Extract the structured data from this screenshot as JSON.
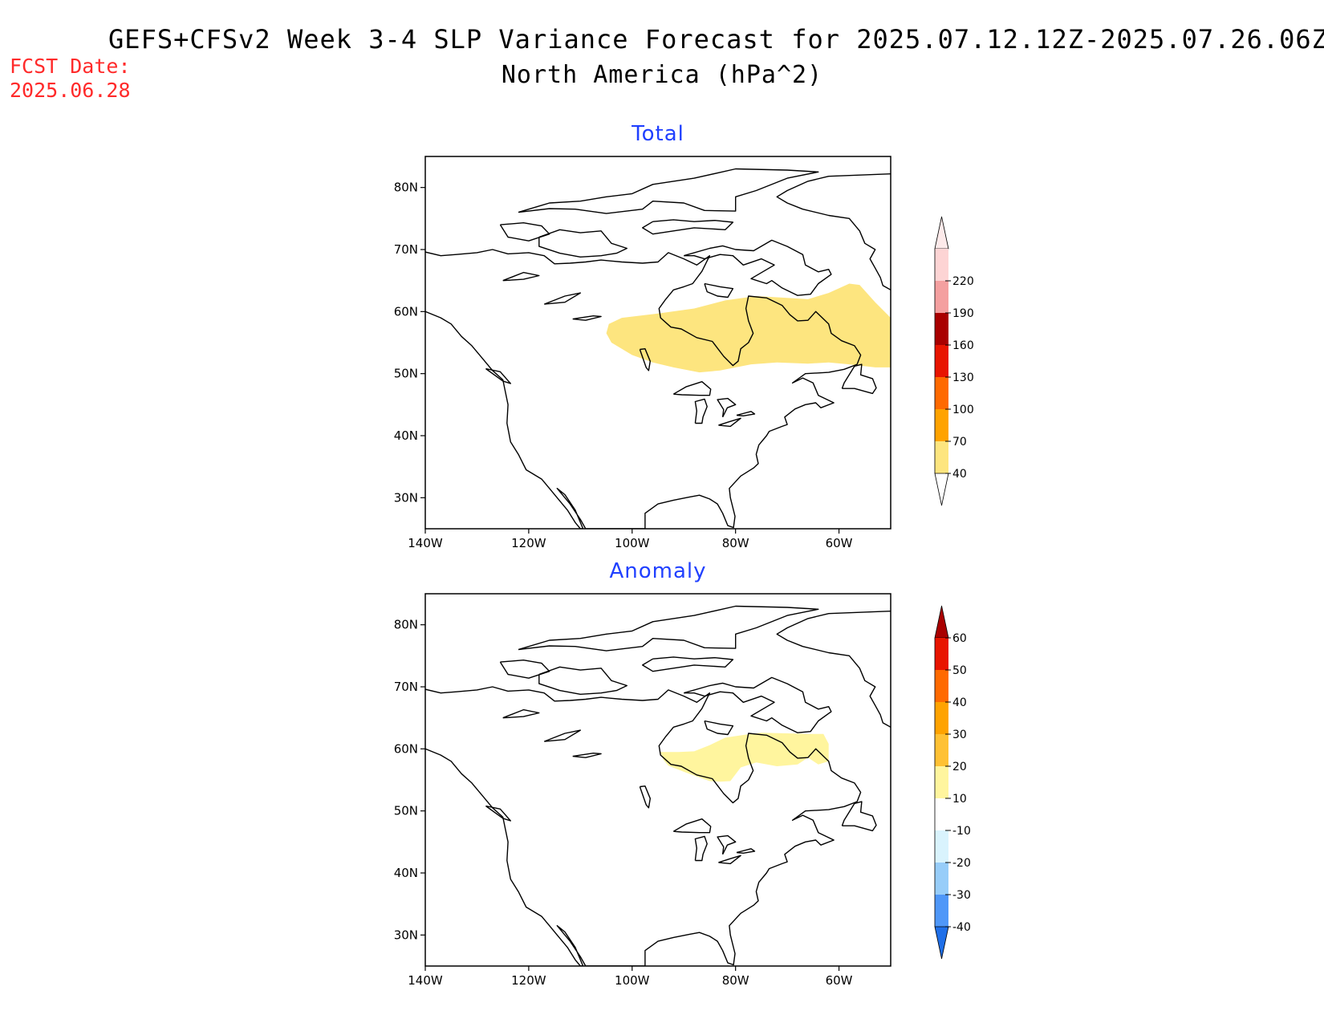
{
  "header": {
    "title_line1": "GEFS+CFSv2 Week 3-4 SLP Variance Forecast for 2025.07.12.12Z-2025.07.26.06Z",
    "title_line2": "North America (hPa^2)",
    "fcst_label": "FCST Date:",
    "fcst_date": "2025.06.28"
  },
  "map": {
    "lon_range": [
      -140,
      -50
    ],
    "lat_range": [
      25,
      85
    ],
    "lon_ticks": [
      -140,
      -120,
      -100,
      -80,
      -60
    ],
    "lon_tick_labels": [
      "140W",
      "120W",
      "100W",
      "80W",
      "60W"
    ],
    "lat_ticks": [
      30,
      40,
      50,
      60,
      70,
      80
    ],
    "lat_tick_labels": [
      "30N",
      "40N",
      "50N",
      "60N",
      "70N",
      "80N"
    ]
  },
  "panels": [
    {
      "title": "Total",
      "shaded_region": {
        "level": "40-70",
        "color": "#fde57f",
        "outline_lonlat": [
          [
            -104.5,
            58
          ],
          [
            -102,
            59
          ],
          [
            -95,
            59.7
          ],
          [
            -88,
            60.5
          ],
          [
            -82,
            61.8
          ],
          [
            -76,
            62.5
          ],
          [
            -72,
            62.3
          ],
          [
            -66,
            62
          ],
          [
            -62,
            63
          ],
          [
            -58,
            64.5
          ],
          [
            -56,
            64.3
          ],
          [
            -53,
            61.5
          ],
          [
            -50,
            59
          ],
          [
            -50,
            51
          ],
          [
            -53,
            51
          ],
          [
            -58,
            51.5
          ],
          [
            -62,
            51.8
          ],
          [
            -66,
            51.6
          ],
          [
            -72,
            51.8
          ],
          [
            -77,
            51.5
          ],
          [
            -83,
            50.5
          ],
          [
            -87,
            50.2
          ],
          [
            -92,
            51
          ],
          [
            -96,
            51.8
          ],
          [
            -100,
            53
          ],
          [
            -104,
            55
          ],
          [
            -105,
            56.5
          ]
        ]
      },
      "colorbar": {
        "levels": [
          "40",
          "70",
          "100",
          "130",
          "160",
          "190",
          "220"
        ],
        "colors": [
          "#fde57f",
          "#ffa300",
          "#ff6a00",
          "#e81500",
          "#a90000",
          "#f4a0a0",
          "#fdd4d4"
        ],
        "low_color": "#ffffff",
        "high_color": "#fdeaea"
      }
    },
    {
      "title": "Anomaly",
      "shaded_region": {
        "level": "10-20",
        "color": "#fff59e",
        "outline_lonlat": [
          [
            -94.5,
            59.5
          ],
          [
            -91,
            59.5
          ],
          [
            -88,
            59.6
          ],
          [
            -85,
            60.6
          ],
          [
            -82,
            61.8
          ],
          [
            -78,
            62.3
          ],
          [
            -75,
            62.6
          ],
          [
            -70,
            62.5
          ],
          [
            -66,
            62.4
          ],
          [
            -63,
            62.4
          ],
          [
            -62,
            60.8
          ],
          [
            -62,
            58
          ],
          [
            -64,
            57.5
          ],
          [
            -66,
            58.6
          ],
          [
            -68,
            57.5
          ],
          [
            -72,
            57.2
          ],
          [
            -76,
            57.8
          ],
          [
            -79,
            57
          ],
          [
            -81,
            54.8
          ],
          [
            -83,
            54.7
          ],
          [
            -85,
            54.8
          ],
          [
            -87,
            55.4
          ],
          [
            -90,
            56.3
          ],
          [
            -93,
            57.3
          ],
          [
            -94,
            58.3
          ]
        ]
      },
      "colorbar": {
        "levels": [
          "-40",
          "-30",
          "-20",
          "-10",
          "10",
          "20",
          "30",
          "40",
          "50",
          "60"
        ],
        "colors": [
          "#4f97f8",
          "#97cdf9",
          "#d9f3fd",
          "#ffffff",
          "#fff59e",
          "#ffc134",
          "#ffa300",
          "#ff6a00",
          "#e81500"
        ],
        "low_color": "#1f6fe8",
        "high_color": "#a90000"
      }
    }
  ]
}
